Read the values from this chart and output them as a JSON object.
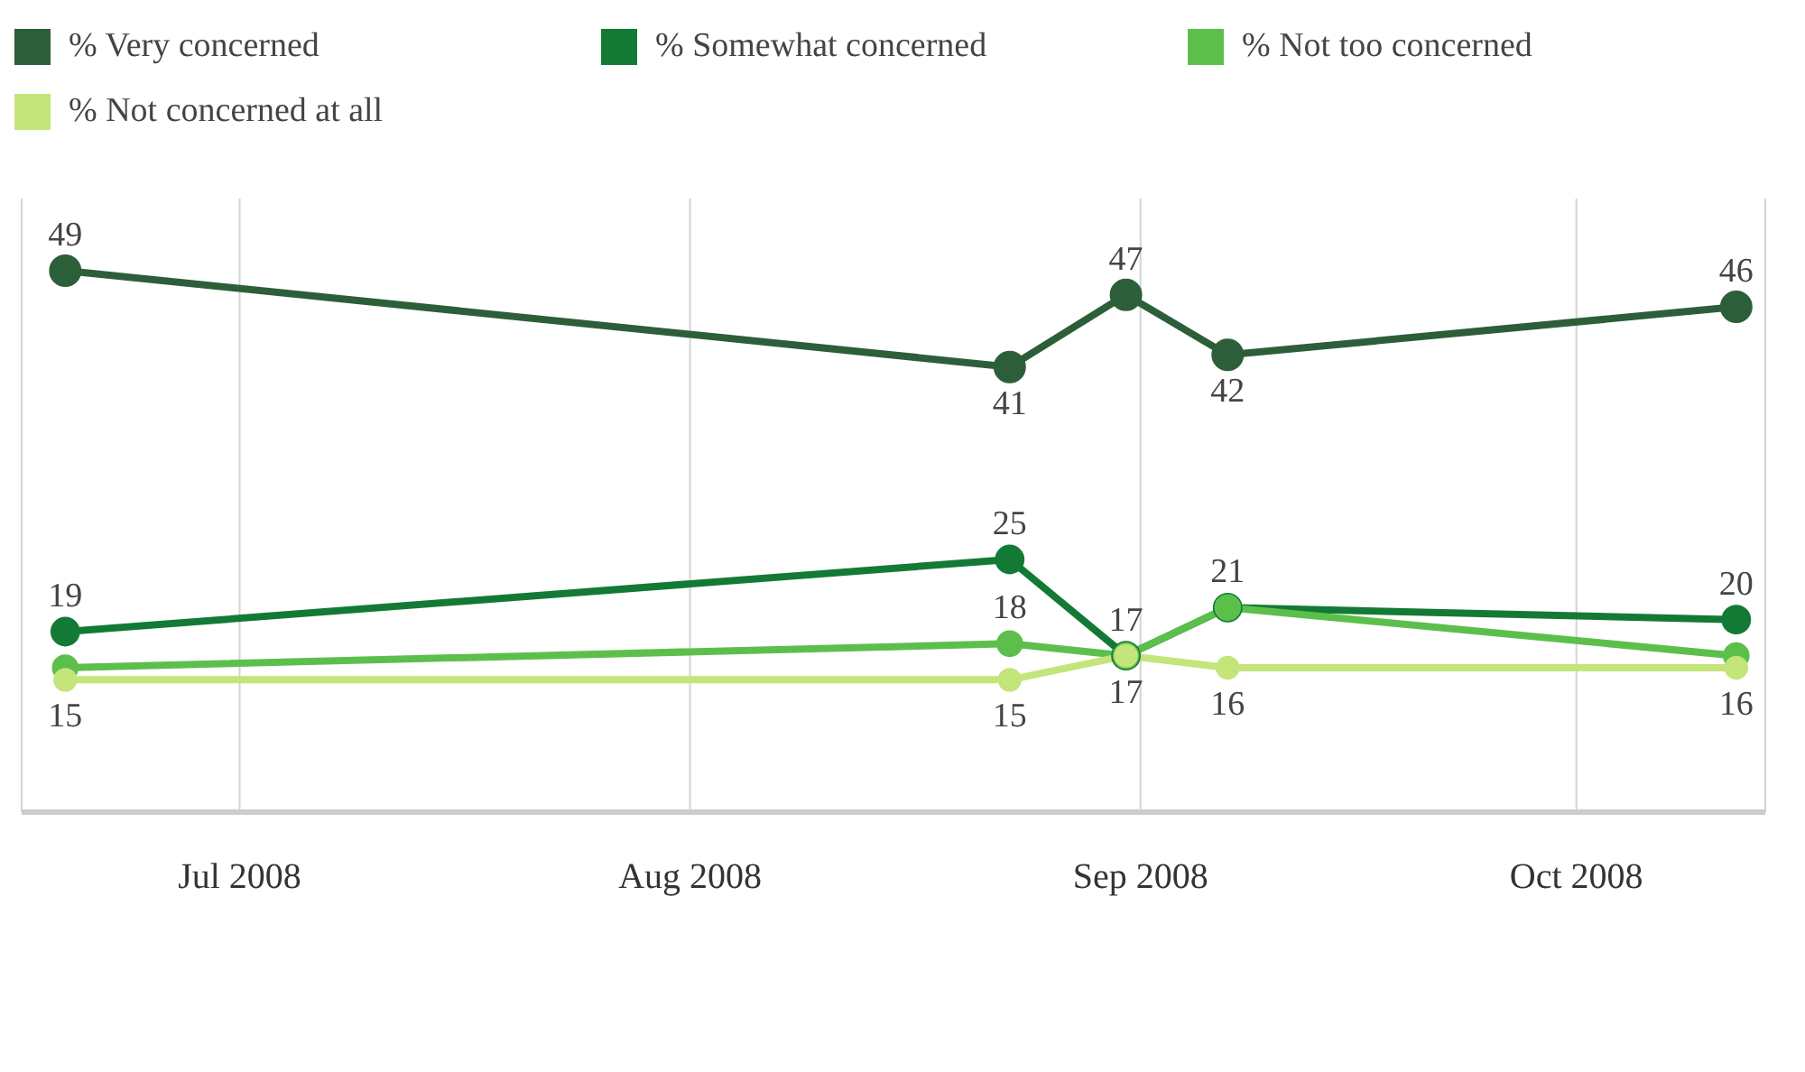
{
  "chart_data": {
    "type": "line",
    "x": [
      "2008-06-19",
      "2008-08-23",
      "2008-08-31",
      "2008-09-07",
      "2008-10-12"
    ],
    "series": [
      {
        "name": "% Very concerned",
        "color": "#2d5e3a",
        "values": [
          49,
          41,
          47,
          42,
          46
        ],
        "value_labels": [
          "49",
          "41",
          "47",
          "42",
          "46"
        ]
      },
      {
        "name": "% Somewhat concerned",
        "color": "#137a35",
        "values": [
          19,
          25,
          17,
          21,
          20
        ],
        "value_labels": [
          "19",
          "25",
          "17",
          "21",
          "20"
        ]
      },
      {
        "name": "% Not too concerned",
        "color": "#5dbf4b",
        "values": [
          16,
          18,
          17,
          21,
          17
        ],
        "value_labels": [
          null,
          "18",
          null,
          null,
          null
        ]
      },
      {
        "name": "% Not concerned at all",
        "color": "#c3e57a",
        "values": [
          15,
          15,
          17,
          16,
          16
        ],
        "value_labels": [
          "15",
          "15",
          "17",
          "16",
          "16"
        ]
      }
    ],
    "xlim": [
      "2008-06-16",
      "2008-10-14"
    ],
    "xticks": [
      {
        "value": "2008-07-01",
        "label": "Jul 2008"
      },
      {
        "value": "2008-08-01",
        "label": "Aug 2008"
      },
      {
        "value": "2008-09-01",
        "label": "Sep 2008"
      },
      {
        "value": "2008-10-01",
        "label": "Oct 2008"
      }
    ],
    "ylim": [
      4,
      55
    ],
    "tick_labels": "x",
    "grid": "x",
    "legend": "top",
    "marker": "circle",
    "line_style": "solid"
  }
}
